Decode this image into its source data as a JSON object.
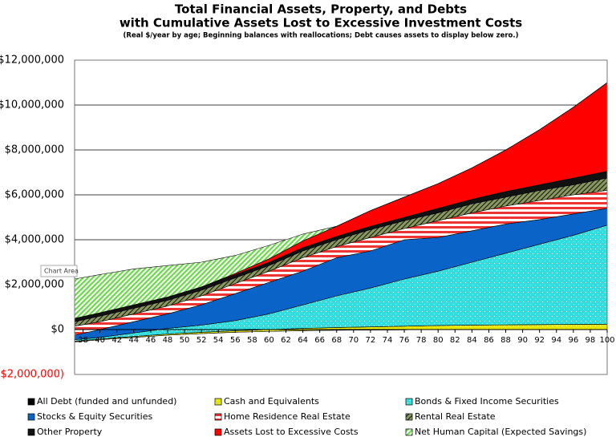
{
  "chart_data": {
    "type": "stacked-area",
    "title": "Total Financial Assets, Property, and Debts",
    "title_line2": "with Cumulative Assets Lost to Excessive Investment Costs",
    "subtitle": "(Real $/year by age;  Beginning balances with reallocations; Debt causes assets to display below zero.)",
    "tooltip": "Chart Area",
    "x": [
      37,
      40,
      44,
      48,
      52,
      56,
      60,
      64,
      68,
      72,
      76,
      80,
      84,
      88,
      92,
      96,
      100
    ],
    "xlim": [
      37,
      100
    ],
    "xticks": [
      38,
      40,
      42,
      44,
      46,
      48,
      50,
      52,
      54,
      56,
      58,
      60,
      62,
      64,
      66,
      68,
      70,
      72,
      74,
      76,
      78,
      80,
      82,
      84,
      86,
      88,
      90,
      92,
      94,
      96,
      98,
      100
    ],
    "ylim": [
      -2000000,
      12000000
    ],
    "yticks": [
      {
        "value": 12000000,
        "label": "$12,000,000"
      },
      {
        "value": 10000000,
        "label": "$10,000,000"
      },
      {
        "value": 8000000,
        "label": "$8,000,000"
      },
      {
        "value": 6000000,
        "label": "$6,000,000"
      },
      {
        "value": 4000000,
        "label": "$4,000,000"
      },
      {
        "value": 2000000,
        "label": "$2,000,000"
      },
      {
        "value": 0,
        "label": "$0"
      },
      {
        "value": -2000000,
        "label": "($2,000,000)"
      }
    ],
    "grid": true,
    "series": [
      {
        "name": "All Debt (funded and unfunded)",
        "color": "#000000",
        "values": [
          -550000,
          -450000,
          -350000,
          -250000,
          -180000,
          -120000,
          -80000,
          -50000,
          -30000,
          -20000,
          -10000,
          0,
          0,
          0,
          0,
          0,
          0
        ]
      },
      {
        "name": "Cash and Equivalents",
        "color": "#e6e600",
        "values": [
          30000,
          30000,
          40000,
          50000,
          60000,
          70000,
          80000,
          100000,
          120000,
          140000,
          160000,
          180000,
          200000,
          210000,
          220000,
          230000,
          240000
        ]
      },
      {
        "name": "Bonds & Fixed Income Securities",
        "color": "#33dddd",
        "values": [
          70000,
          70000,
          160000,
          250000,
          320000,
          450000,
          700000,
          1050000,
          1410000,
          1730000,
          2100000,
          2420000,
          2800000,
          3190000,
          3580000,
          3970000,
          4410000
        ]
      },
      {
        "name": "Stocks & Equity Securities",
        "color": "#0a64c8",
        "values": [
          200000,
          350000,
          500000,
          650000,
          900000,
          1200000,
          1400000,
          1500000,
          1700000,
          1650000,
          1750000,
          1500000,
          1400000,
          1300000,
          1100000,
          950000,
          750000
        ]
      },
      {
        "name": "Home Residence Real Estate",
        "color": "#ee3333",
        "values": [
          400000,
          350000,
          350000,
          350000,
          400000,
          450000,
          500000,
          600000,
          500000,
          600000,
          500000,
          750000,
          800000,
          800000,
          850000,
          850000,
          800000
        ]
      },
      {
        "name": "Rental Real Estate",
        "color": "#8a9a5b",
        "values": [
          200000,
          250000,
          250000,
          250000,
          250000,
          250000,
          250000,
          300000,
          300000,
          350000,
          350000,
          350000,
          400000,
          400000,
          450000,
          450000,
          550000
        ]
      },
      {
        "name": "Other Property",
        "color": "#111111",
        "values": [
          150000,
          150000,
          150000,
          150000,
          150000,
          150000,
          150000,
          150000,
          150000,
          150000,
          150000,
          200000,
          200000,
          250000,
          250000,
          300000,
          300000
        ]
      },
      {
        "name": "Assets Lost to Excessive Costs",
        "color": "#ff0000",
        "values": [
          0,
          0,
          0,
          0,
          0,
          50000,
          150000,
          300000,
          450000,
          700000,
          900000,
          1100000,
          1400000,
          1850000,
          2450000,
          3150000,
          3950000
        ]
      },
      {
        "name": "Net Human Capital (Expected Savings)",
        "color": "#66dd44",
        "values": [
          1750000,
          1700000,
          1600000,
          1400000,
          1100000,
          800000,
          600000,
          300000,
          0,
          0,
          0,
          0,
          0,
          0,
          0,
          0,
          0
        ]
      }
    ]
  }
}
